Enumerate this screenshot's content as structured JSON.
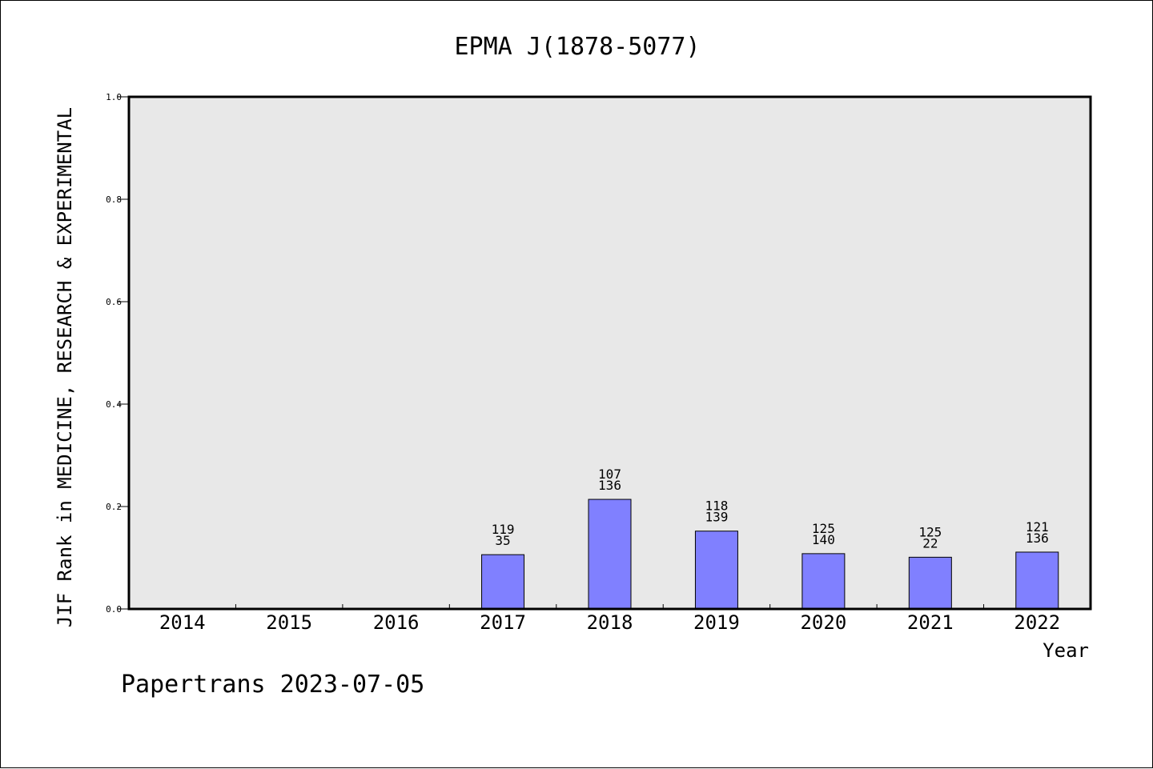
{
  "chart_data": {
    "type": "bar",
    "title": "EPMA J(1878-5077)",
    "xlabel": "Year",
    "ylabel": "JIF Rank in MEDICINE, RESEARCH & EXPERIMENTAL",
    "ylim": [
      0,
      1.0
    ],
    "yticks": [
      "0.0",
      "0.2",
      "0.4",
      "0.6",
      "0.8",
      "1.0"
    ],
    "categories": [
      "2014",
      "2015",
      "2016",
      "2017",
      "2018",
      "2019",
      "2020",
      "2021",
      "2022"
    ],
    "values": [
      null,
      null,
      null,
      0.106,
      0.214,
      0.152,
      0.108,
      0.101,
      0.111
    ],
    "labels": [
      null,
      null,
      null,
      [
        "119",
        "35"
      ],
      [
        "107",
        "136"
      ],
      [
        "118",
        "139"
      ],
      [
        "125",
        "140"
      ],
      [
        "125",
        "22"
      ],
      [
        "121",
        "136"
      ]
    ],
    "grid": false,
    "bar_color": "#8080ff",
    "plot_background": "#e8e8e8"
  },
  "footer": "Papertrans 2023-07-05"
}
